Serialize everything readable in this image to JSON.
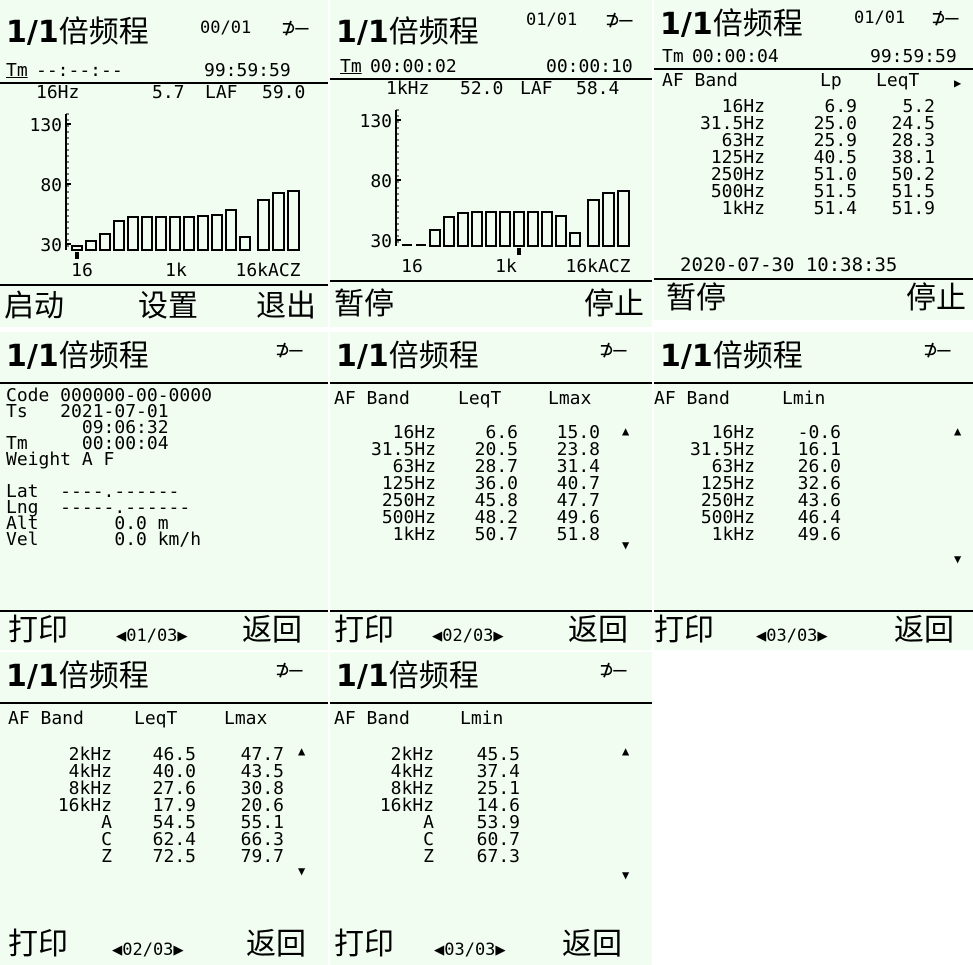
{
  "title": {
    "number": "1/1",
    "chinese": "倍频程"
  },
  "plug_icon": "⊅—",
  "screens": {
    "s1": {
      "page": "00/01",
      "tm_label": "Tm",
      "tm": "--:--:--",
      "tm_total": "99:59:59",
      "band": "16Hz",
      "band_value": "5.7",
      "mode": "LAF",
      "mode_value": "59.0",
      "ticks": [
        "130",
        "80",
        "30"
      ],
      "xlabels": [
        "16",
        "1k",
        "16kACZ"
      ],
      "left": "启动",
      "middle": "设置",
      "right": "退出"
    },
    "s2": {
      "page": "01/01",
      "tm_label": "Tm",
      "tm": "00:00:02",
      "tm_total": "00:00:10",
      "band": "1kHz",
      "band_value": "52.0",
      "mode": "LAF",
      "mode_value": "58.4",
      "ticks": [
        "130",
        "80",
        "30"
      ],
      "xlabels": [
        "16",
        "1k",
        "16kACZ"
      ],
      "left": "暂停",
      "right": "停止"
    },
    "s3": {
      "page": "01/01",
      "tm_label": "Tm",
      "tm": "00:00:04",
      "tm_total": "99:59:59",
      "h1": "AF Band",
      "h2": "Lp",
      "h3": "LeqT",
      "bands": "16Hz\n31.5Hz\n63Hz\n125Hz\n250Hz\n500Hz\n1kHz",
      "lp": "6.9\n25.0\n25.9\n40.5\n51.0\n51.5\n51.4",
      "leq": "5.2\n24.5\n28.3\n38.1\n50.2\n51.5\n51.9",
      "datetime": "2020-07-30 10:38:35",
      "left": "暂停",
      "right": "停止"
    },
    "s4": {
      "lines": "Code 000000-00-0000\nTs   2021-07-01\n       09:06:32\nTm     00:00:04\nWeight A F\n\nLat  ----.------\nLng  -----.------\nAlt       0.0 m\nVel       0.0 km/h",
      "left": "打印",
      "nav": "◀01/03▶",
      "right": "返回"
    },
    "s5": {
      "h1": "AF Band",
      "h2": "LeqT",
      "h3": "Lmax",
      "bands": "16Hz\n31.5Hz\n63Hz\n125Hz\n250Hz\n500Hz\n1kHz",
      "c1": "6.6\n20.5\n28.7\n36.0\n45.8\n48.2\n50.7",
      "c2": "15.0\n23.8\n31.4\n40.7\n47.7\n49.6\n51.8",
      "left": "打印",
      "nav": "◀02/03▶",
      "right": "返回"
    },
    "s6": {
      "h1": "AF Band",
      "h2": "Lmin",
      "bands": "16Hz\n31.5Hz\n63Hz\n125Hz\n250Hz\n500Hz\n1kHz",
      "c1": "-0.6\n16.1\n26.0\n32.6\n43.6\n46.4\n49.6",
      "left": "打印",
      "nav": "◀03/03▶",
      "right": "返回"
    },
    "s7": {
      "h1": "AF Band",
      "h2": "LeqT",
      "h3": "Lmax",
      "bands": "2kHz\n4kHz\n8kHz\n16kHz\nA\nC\nZ",
      "c1": "46.5\n40.0\n27.6\n17.9\n54.5\n62.4\n72.5",
      "c2": "47.7\n43.5\n30.8\n20.6\n55.1\n66.3\n79.7",
      "left": "打印",
      "nav": "◀02/03▶",
      "right": "返回"
    },
    "s8": {
      "h1": "AF Band",
      "h2": "Lmin",
      "bands": "2kHz\n4kHz\n8kHz\n16kHz\nA\nC\nZ",
      "c1": "45.5\n37.4\n25.1\n14.6\n53.9\n60.7\n67.3",
      "left": "打印",
      "nav": "◀03/03▶",
      "right": "返回"
    }
  },
  "bars_s1": [
    4,
    9,
    16,
    29,
    33,
    33,
    33,
    33,
    33,
    34,
    35,
    40,
    13,
    50,
    57,
    59
  ],
  "bars_s2": [
    0,
    0,
    16,
    29,
    33,
    34,
    34,
    34,
    34,
    34,
    34,
    30,
    13,
    46,
    53,
    55
  ]
}
